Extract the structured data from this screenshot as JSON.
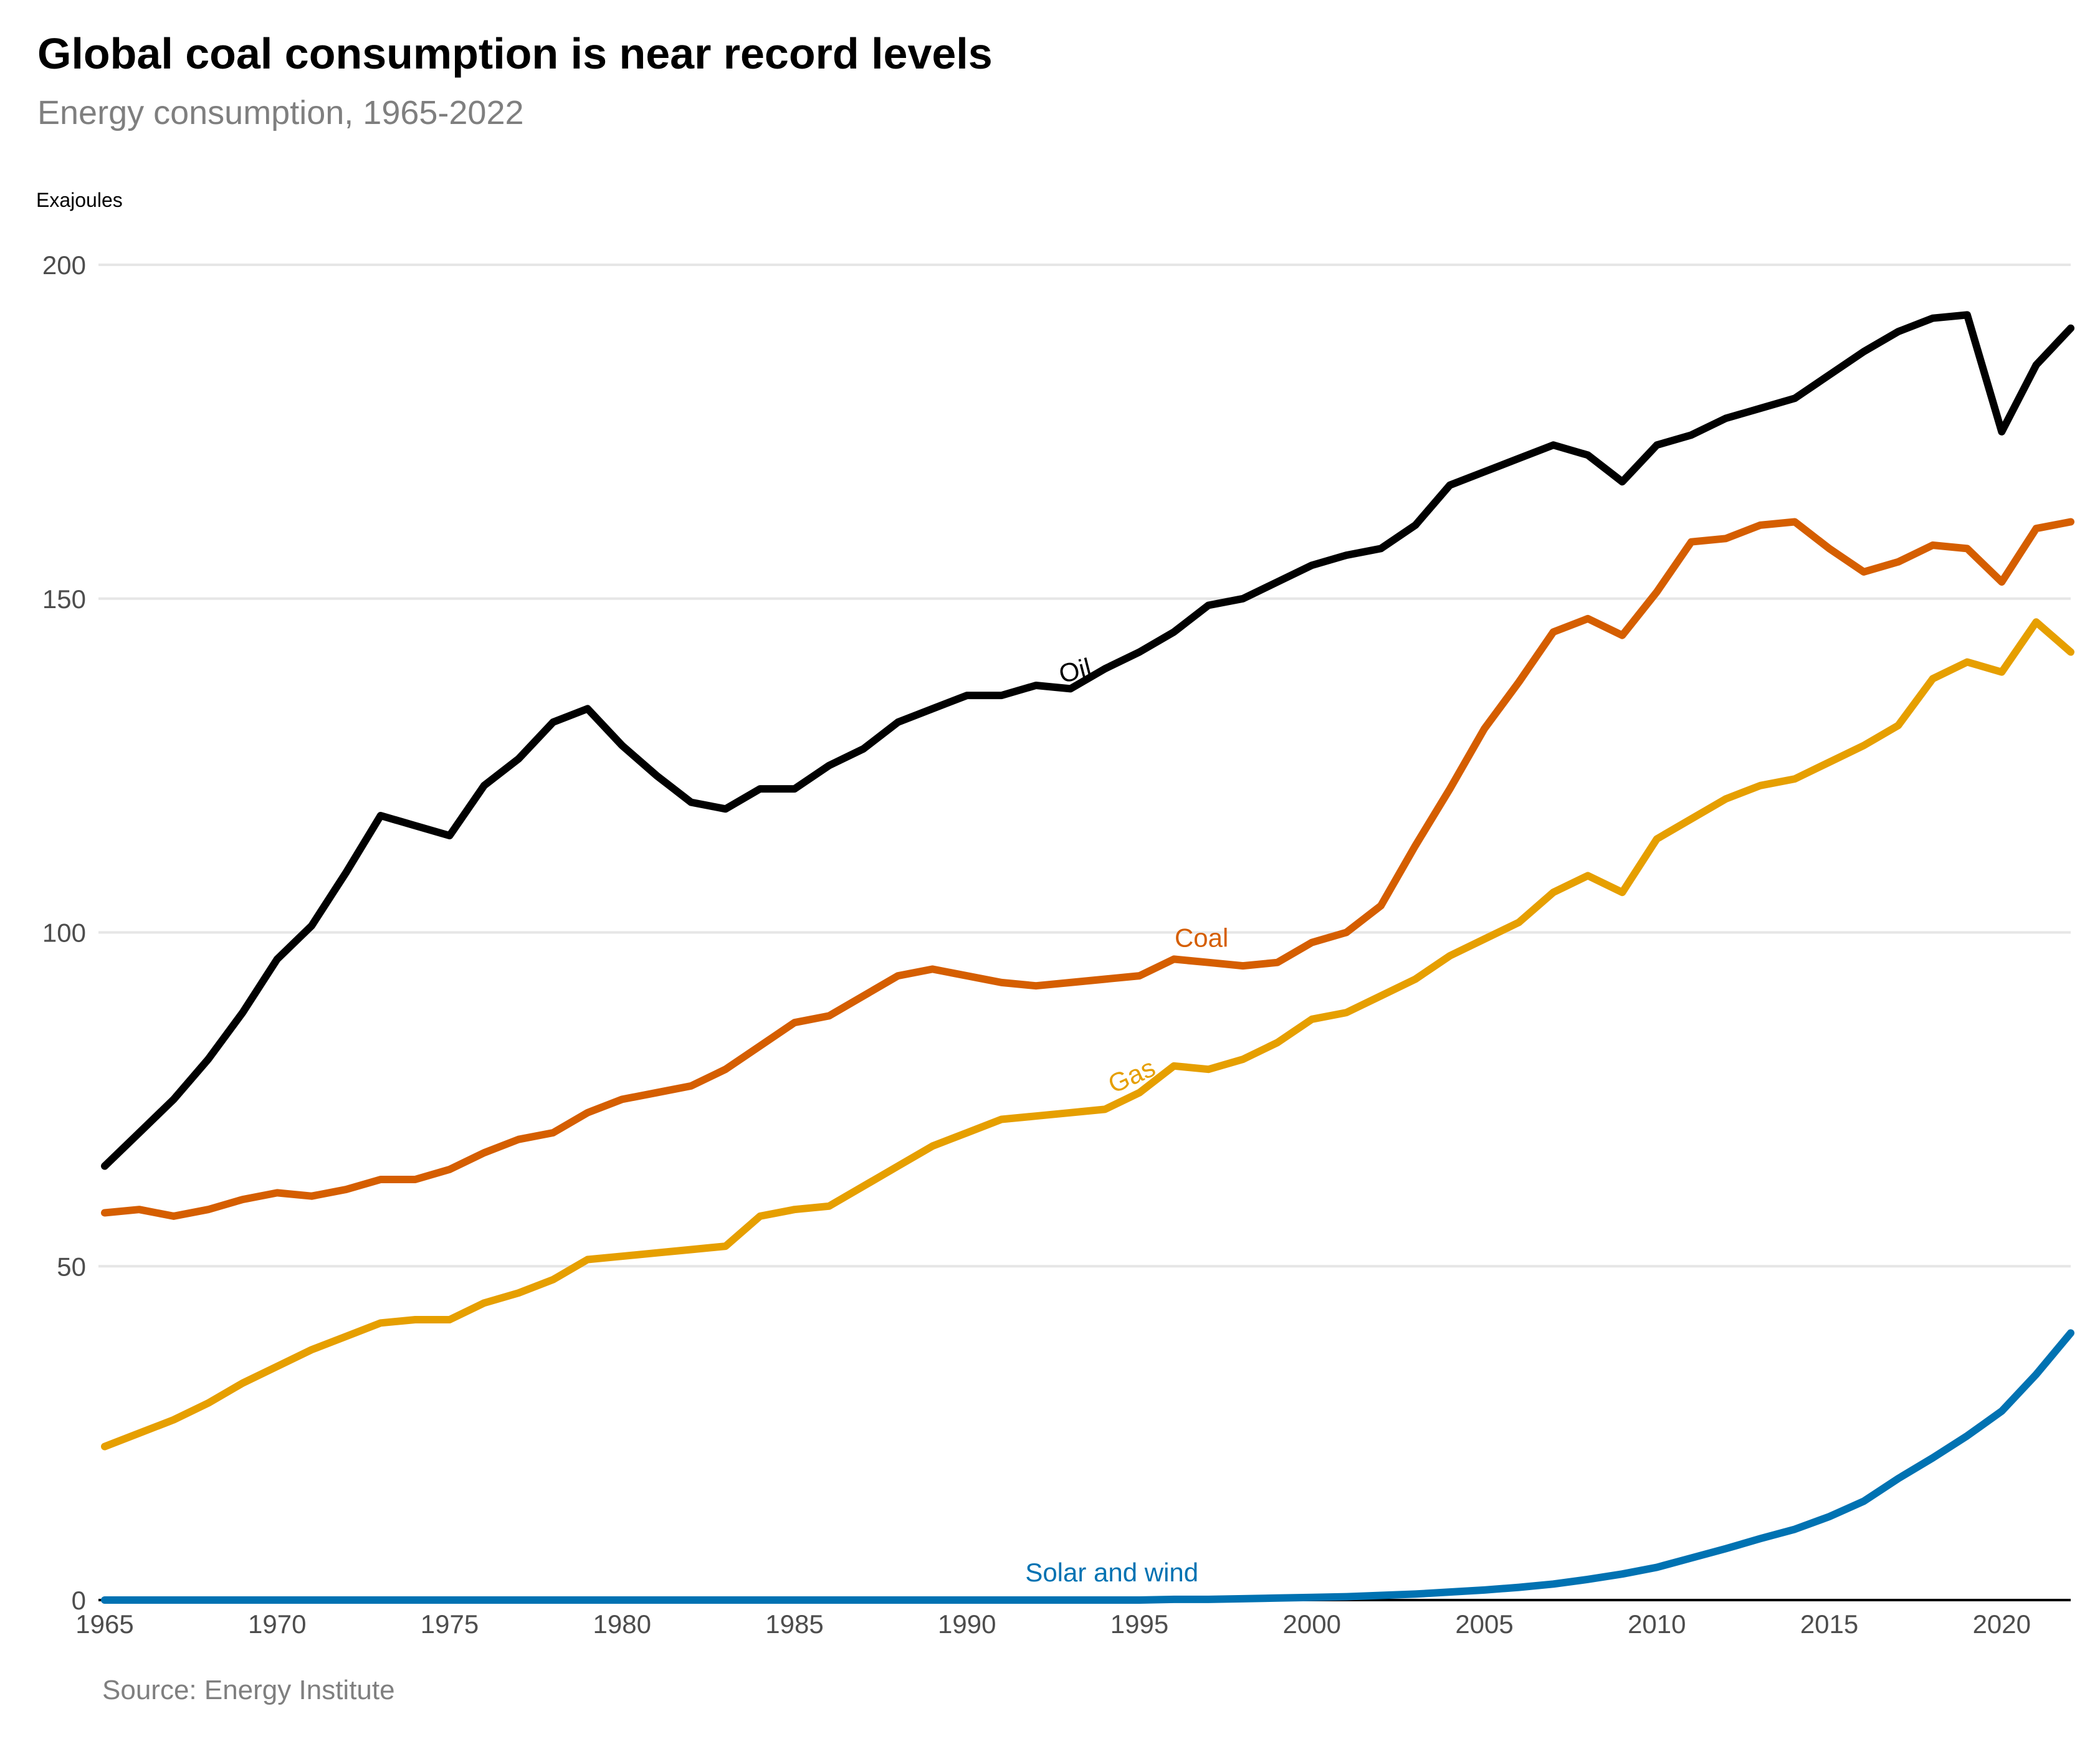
{
  "title": "Global coal consumption is near record levels",
  "subtitle": "Energy consumption, 1965-2022",
  "source": "Source: Energy Institute",
  "chart_data": {
    "type": "line",
    "ylabel": "Exajoules",
    "xlabel": "",
    "ylim": [
      0,
      200
    ],
    "xlim": [
      1965,
      2022
    ],
    "yticks": [
      0,
      50,
      100,
      150,
      200
    ],
    "xticks": [
      1965,
      1970,
      1975,
      1980,
      1985,
      1990,
      1995,
      2000,
      2005,
      2010,
      2015,
      2020
    ],
    "grid": "horizontal",
    "legend": "direct labels on lines",
    "x": [
      1965,
      1966,
      1967,
      1968,
      1969,
      1970,
      1971,
      1972,
      1973,
      1974,
      1975,
      1976,
      1977,
      1978,
      1979,
      1980,
      1981,
      1982,
      1983,
      1984,
      1985,
      1986,
      1987,
      1988,
      1989,
      1990,
      1991,
      1992,
      1993,
      1994,
      1995,
      1996,
      1997,
      1998,
      1999,
      2000,
      2001,
      2002,
      2003,
      2004,
      2005,
      2006,
      2007,
      2008,
      2009,
      2010,
      2011,
      2012,
      2013,
      2014,
      2015,
      2016,
      2017,
      2018,
      2019,
      2020,
      2021,
      2022
    ],
    "series": [
      {
        "name": "Oil",
        "color": "#000000",
        "values": [
          65,
          70,
          75,
          81,
          88,
          96,
          101,
          109,
          117.5,
          116,
          114.5,
          122,
          126,
          131.5,
          133.5,
          128,
          123.5,
          119.5,
          118.5,
          121.5,
          121.5,
          125,
          127.5,
          131.5,
          133.5,
          135.5,
          135.5,
          137,
          136.5,
          139.5,
          142,
          145,
          149,
          150,
          152.5,
          155,
          156.5,
          157.5,
          161,
          167,
          169,
          171,
          173,
          171.5,
          167.5,
          173,
          174.5,
          177,
          178.5,
          180,
          183.5,
          187,
          190,
          192,
          192.5,
          175,
          185,
          190.5
        ]
      },
      {
        "name": "Coal",
        "color": "#d55e00",
        "values": [
          58,
          58.5,
          57.5,
          58.5,
          60,
          61,
          60.5,
          61.5,
          63,
          63,
          64.5,
          67,
          69,
          70,
          73,
          75,
          76,
          77,
          79.5,
          83,
          86.5,
          87.5,
          90.5,
          93.5,
          94.5,
          93.5,
          92.5,
          92,
          92.5,
          93,
          93.5,
          96,
          95.5,
          95,
          95.5,
          98.5,
          100,
          104,
          113,
          121.5,
          130.5,
          137.5,
          145,
          147,
          144.5,
          151,
          158.5,
          159,
          161,
          161.5,
          157.5,
          154,
          155.5,
          158,
          157.5,
          152.5,
          160.5,
          161.5
        ]
      },
      {
        "name": "Gas",
        "color": "#e69f00",
        "values": [
          23,
          25,
          27,
          29.5,
          32.5,
          35,
          37.5,
          39.5,
          41.5,
          42,
          42,
          44.5,
          46,
          48,
          51,
          51.5,
          52,
          52.5,
          53,
          57.5,
          58.5,
          59,
          62,
          65,
          68,
          70,
          72,
          72.5,
          73,
          73.5,
          76,
          80,
          79.5,
          81,
          83.5,
          87,
          88,
          90.5,
          93,
          96.5,
          99,
          101.5,
          106,
          108.5,
          106,
          114,
          117,
          120,
          122,
          123,
          125.5,
          128,
          131,
          138,
          140.5,
          139,
          146.5,
          142
        ]
      },
      {
        "name": "Solar and wind",
        "color": "#0072b2",
        "values": [
          0,
          0,
          0,
          0,
          0,
          0,
          0,
          0,
          0,
          0,
          0,
          0,
          0,
          0,
          0,
          0,
          0,
          0,
          0,
          0,
          0,
          0,
          0,
          0,
          0,
          0,
          0,
          0,
          0,
          0,
          0,
          0.1,
          0.1,
          0.2,
          0.3,
          0.4,
          0.5,
          0.7,
          0.9,
          1.2,
          1.5,
          1.9,
          2.4,
          3.1,
          3.9,
          4.9,
          6.3,
          7.7,
          9.2,
          10.6,
          12.5,
          14.8,
          18.2,
          21.3,
          24.6,
          28.3,
          33.8,
          40
        ]
      }
    ],
    "annotations": [
      {
        "text": "Oil",
        "series": "Oil",
        "x": 1992.8
      },
      {
        "text": "Coal",
        "series": "Coal",
        "x": 1996.8
      },
      {
        "text": "Gas",
        "series": "Gas",
        "x": 1994.7
      },
      {
        "text": "Solar and wind",
        "series": "Solar and wind",
        "x": 1994.2
      }
    ]
  }
}
